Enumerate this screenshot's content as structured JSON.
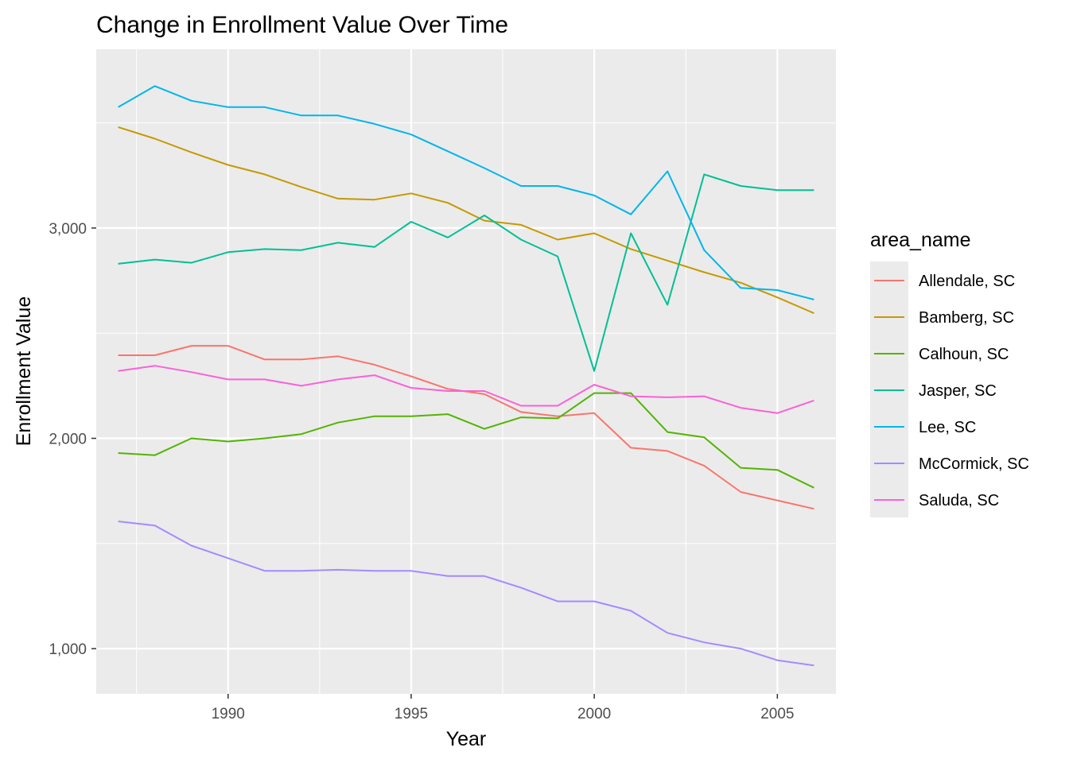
{
  "chart_data": {
    "type": "line",
    "title": "Change in Enrollment Value Over Time",
    "xlabel": "Year",
    "ylabel": "Enrollment Value",
    "xlim": [
      1986.4,
      2006.6
    ],
    "ylim": [
      785,
      3850
    ],
    "x_ticks": [
      1990,
      1995,
      2000,
      2005
    ],
    "x_tick_labels": [
      "1990",
      "1995",
      "2000",
      "2005"
    ],
    "y_ticks": [
      1000,
      2000,
      3000
    ],
    "y_tick_labels": [
      "1,000",
      "2,000",
      "3,000"
    ],
    "grid": true,
    "legend_title": "area_name",
    "legend_position": "right",
    "x": [
      1987,
      1988,
      1989,
      1990,
      1991,
      1992,
      1993,
      1994,
      1995,
      1996,
      1997,
      1998,
      1999,
      2000,
      2001,
      2002,
      2003,
      2004,
      2005,
      2006
    ],
    "series": [
      {
        "name": "Allendale, SC",
        "color": "#F8766D",
        "values": [
          2395,
          2395,
          2440,
          2440,
          2375,
          2375,
          2390,
          2350,
          2295,
          2235,
          2210,
          2125,
          2105,
          2120,
          1955,
          1940,
          1870,
          1745,
          1705,
          1665
        ]
      },
      {
        "name": "Bamberg, SC",
        "color": "#C49A00",
        "values": [
          3480,
          3425,
          3360,
          3300,
          3255,
          3195,
          3140,
          3135,
          3165,
          3120,
          3035,
          3015,
          2945,
          2975,
          2900,
          2845,
          2790,
          2740,
          2670,
          2595
        ]
      },
      {
        "name": "Calhoun, SC",
        "color": "#53B400",
        "values": [
          1930,
          1920,
          2000,
          1985,
          2000,
          2020,
          2075,
          2105,
          2105,
          2115,
          2045,
          2100,
          2095,
          2215,
          2215,
          2030,
          2005,
          1860,
          1850,
          1765
        ]
      },
      {
        "name": "Jasper, SC",
        "color": "#00C094",
        "values": [
          2830,
          2850,
          2835,
          2885,
          2900,
          2895,
          2930,
          2910,
          3030,
          2955,
          3060,
          2945,
          2865,
          2320,
          2975,
          2635,
          3255,
          3200,
          3180,
          3180
        ]
      },
      {
        "name": "Lee, SC",
        "color": "#00B6EB",
        "values": [
          3575,
          3675,
          3605,
          3575,
          3575,
          3535,
          3535,
          3495,
          3445,
          3365,
          3285,
          3200,
          3200,
          3155,
          3065,
          3270,
          2895,
          2715,
          2705,
          2660
        ]
      },
      {
        "name": "McCormick, SC",
        "color": "#A58AFF",
        "values": [
          1605,
          1585,
          1490,
          1430,
          1370,
          1370,
          1375,
          1370,
          1370,
          1345,
          1345,
          1290,
          1225,
          1225,
          1180,
          1075,
          1030,
          1000,
          945,
          920
        ]
      },
      {
        "name": "Saluda, SC",
        "color": "#FB61D7",
        "values": [
          2320,
          2345,
          2315,
          2280,
          2280,
          2250,
          2280,
          2300,
          2240,
          2225,
          2225,
          2155,
          2155,
          2255,
          2200,
          2195,
          2200,
          2145,
          2120,
          2180
        ]
      }
    ]
  }
}
